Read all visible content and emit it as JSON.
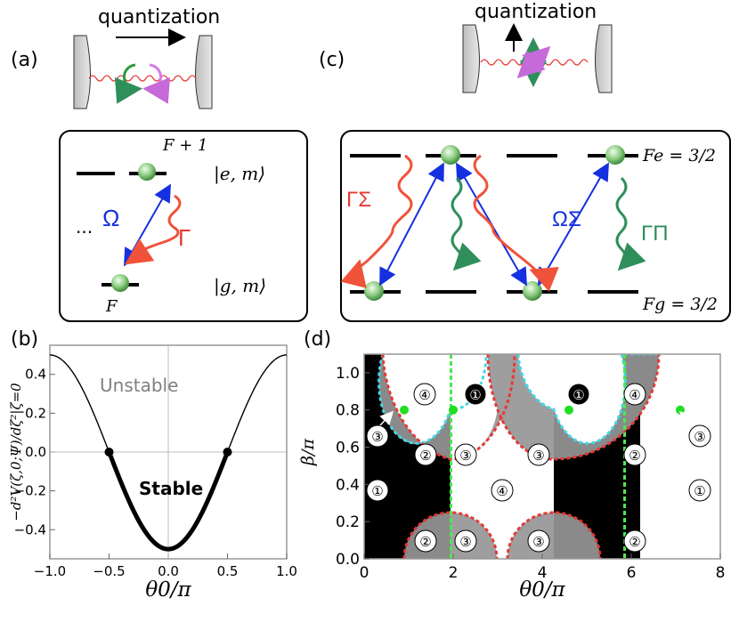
{
  "figure": {
    "panel_a": {
      "label": "(a)",
      "quantization": "quantization",
      "level_top": "F + 1",
      "ket_e": "|e, m⟩",
      "ket_g": "|g, m⟩",
      "level_bottom": "F",
      "rabi": "Ω",
      "decay": "Γ",
      "ellipsis": "..."
    },
    "panel_b": {
      "label": "(b)",
      "unstable": "Unstable",
      "stable": "Stable"
    },
    "panel_c": {
      "label": "(c)",
      "quantization": "quantization",
      "fe": "Fe = 3/2",
      "fg": "Fg = 3/2",
      "gamma_sigma": "ΓΣ",
      "omega_sigma": "ΩΣ",
      "gamma_pi": "ΓΠ"
    },
    "panel_d": {
      "label": "(d)",
      "region_labels": [
        "①",
        "②",
        "③",
        "④"
      ]
    }
  },
  "chart_data": [
    {
      "type": "line",
      "panel": "b",
      "function": "-0.5*cos(pi*theta0/pi)",
      "x": [
        -1.0,
        -0.75,
        -0.5,
        -0.25,
        0.0,
        0.25,
        0.5,
        0.75,
        1.0
      ],
      "y": [
        0.5,
        0.354,
        0.0,
        -0.354,
        -0.5,
        -0.354,
        0.0,
        0.354,
        0.5
      ],
      "xlabel": "θ0/π",
      "ylabel": "−d²V(ζ,0;Ψ)/dζ²|ζ=0",
      "xlim": [
        -1.0,
        1.0
      ],
      "ylim": [
        -0.55,
        0.55
      ],
      "xticks": [
        "-1.0",
        "-0.5",
        "0.0",
        "0.5",
        "1.0"
      ],
      "yticks": [
        "-0.4",
        "-0.2",
        "0.0",
        "0.2",
        "0.4"
      ],
      "marked_points": [
        [
          -0.5,
          0.0
        ],
        [
          0.5,
          0.0
        ]
      ],
      "annotations": [
        "Unstable",
        "Stable"
      ]
    },
    {
      "type": "heatmap",
      "panel": "d",
      "xlabel": "θ0/π",
      "ylabel": "β/π",
      "xlim": [
        0,
        8
      ],
      "ylim": [
        0,
        1.1
      ],
      "xticks": [
        "0",
        "2",
        "4",
        "6",
        "8"
      ],
      "yticks": [
        "0.0",
        "0.2",
        "0.4",
        "0.6",
        "0.8",
        "1.0"
      ],
      "regions": [
        "1",
        "2",
        "3",
        "4"
      ],
      "boundary_points": [
        [
          0.9,
          0.8
        ],
        [
          2.0,
          0.8
        ],
        [
          4.6,
          0.8
        ],
        [
          7.1,
          0.8
        ]
      ],
      "vertical_boundaries": [
        1.95,
        5.85
      ]
    }
  ]
}
